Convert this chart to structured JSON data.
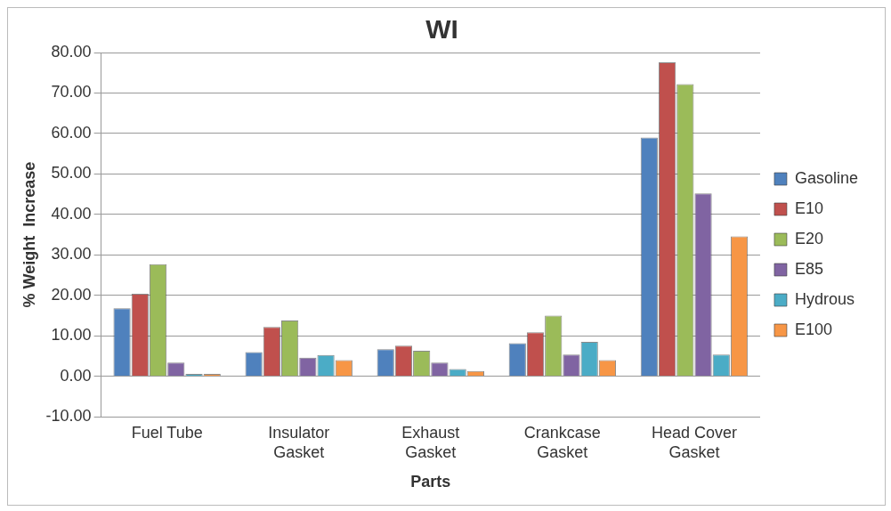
{
  "chart_data": {
    "type": "bar",
    "title": "WI",
    "xlabel": "Parts",
    "ylabel": "% Weight  Increase",
    "categories": [
      "Fuel Tube",
      "Insulator Gasket",
      "Exhaust Gasket",
      "Crankcase Gasket",
      "Head Cover Gasket"
    ],
    "series": [
      {
        "name": "Gasoline",
        "color": "#4f81bd",
        "values": [
          16.8,
          6.0,
          6.7,
          8.2,
          59.0
        ]
      },
      {
        "name": "E10",
        "color": "#c0504d",
        "values": [
          20.4,
          12.2,
          7.6,
          10.9,
          77.6
        ]
      },
      {
        "name": "E20",
        "color": "#9bbb59",
        "values": [
          27.7,
          13.8,
          6.3,
          15.0,
          72.2
        ]
      },
      {
        "name": "E85",
        "color": "#8064a2",
        "values": [
          3.4,
          4.6,
          3.4,
          5.4,
          45.2
        ]
      },
      {
        "name": "Hydrous",
        "color": "#4bacc6",
        "values": [
          0.6,
          5.3,
          1.8,
          8.5,
          5.4
        ]
      },
      {
        "name": "E100",
        "color": "#f79646",
        "values": [
          0.6,
          4.0,
          1.3,
          4.0,
          34.6
        ]
      }
    ],
    "ylim": [
      -10,
      80
    ],
    "yticks": [
      {
        "value": -10,
        "label": "-10.00"
      },
      {
        "value": 0,
        "label": "0.00"
      },
      {
        "value": 10,
        "label": "10.00"
      },
      {
        "value": 20,
        "label": "20.00"
      },
      {
        "value": 30,
        "label": "30.00"
      },
      {
        "value": 40,
        "label": "40.00"
      },
      {
        "value": 50,
        "label": "50.00"
      },
      {
        "value": 60,
        "label": "60.00"
      },
      {
        "value": 70,
        "label": "70.00"
      },
      {
        "value": 80,
        "label": "80.00"
      }
    ],
    "grid": "y",
    "legend": "right"
  }
}
